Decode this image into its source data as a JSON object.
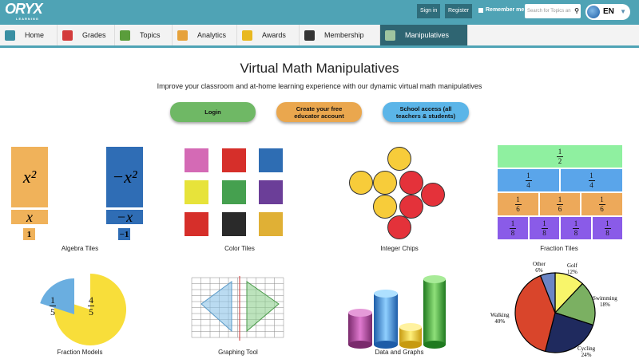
{
  "header": {
    "logo": "ORYX",
    "logo_sub": "LEARNING",
    "sign_in": "Sign in",
    "register": "Register",
    "remember": "Remember me",
    "search_placeholder": "Search for Topics an",
    "language": "EN"
  },
  "nav": [
    {
      "label": "Home",
      "icon": "home-icon",
      "color": "#3a8fa3"
    },
    {
      "label": "Grades",
      "icon": "book-icon",
      "color": "#d33c3c"
    },
    {
      "label": "Topics",
      "icon": "speech-bubble-icon",
      "color": "#5a9d3b"
    },
    {
      "label": "Analytics",
      "icon": "chart-icon",
      "color": "#e6a23c"
    },
    {
      "label": "Awards",
      "icon": "trophy-icon",
      "color": "#e8b820"
    },
    {
      "label": "Membership",
      "icon": "card-icon",
      "color": "#333"
    },
    {
      "label": "Manipulatives",
      "icon": "manipulatives-icon",
      "color": "#9fc5a0",
      "active": true
    }
  ],
  "main": {
    "title": "Virtual Math Manipulatives",
    "subtitle": "Improve your classroom and at-home learning experience with our dynamic virtual math manipulatives",
    "buttons": [
      {
        "label": "Login",
        "color": "#6fb865"
      },
      {
        "label": "Create your free educator account",
        "color": "#eaa74e"
      },
      {
        "label": "School access (all teachers & students)",
        "color": "#5bb5e8"
      }
    ],
    "items": [
      "Algebra Tiles",
      "Color Tiles",
      "Integer Chips",
      "Fraction Tiles",
      "Fraction Models",
      "Graphing Tool",
      "Data and Graphs",
      ""
    ],
    "algebra": {
      "x2": "x²",
      "negx2": "−x²",
      "x": "x",
      "negx": "−x",
      "one": "1",
      "negone": "−1"
    },
    "fractions": {
      "half": [
        "1",
        "2"
      ],
      "quarter": [
        "1",
        "4"
      ],
      "sixth": [
        "1",
        "6"
      ],
      "eighth": [
        "1",
        "8"
      ]
    },
    "fraction_model": {
      "small": [
        "1",
        "5"
      ],
      "large": [
        "4",
        "5"
      ]
    },
    "pie": [
      {
        "label": "Golf",
        "value": 12,
        "color": "#f8f56a"
      },
      {
        "label": "Swimming",
        "value": 18,
        "color": "#7bb062"
      },
      {
        "label": "Cycling",
        "value": 24,
        "color": "#1f2a5e"
      },
      {
        "label": "Walking",
        "value": 40,
        "color": "#d9452b"
      },
      {
        "label": "Other",
        "value": 6,
        "color": "#6b85c4"
      }
    ],
    "pie_labels": {
      "golf": "Golf",
      "golf_pct": "12%",
      "swim": "Swimming",
      "swim_pct": "18%",
      "cyc": "Cycling",
      "cyc_pct": "24%",
      "walk": "Walking",
      "walk_pct": "40%",
      "other": "Other",
      "other_pct": "6%"
    }
  }
}
